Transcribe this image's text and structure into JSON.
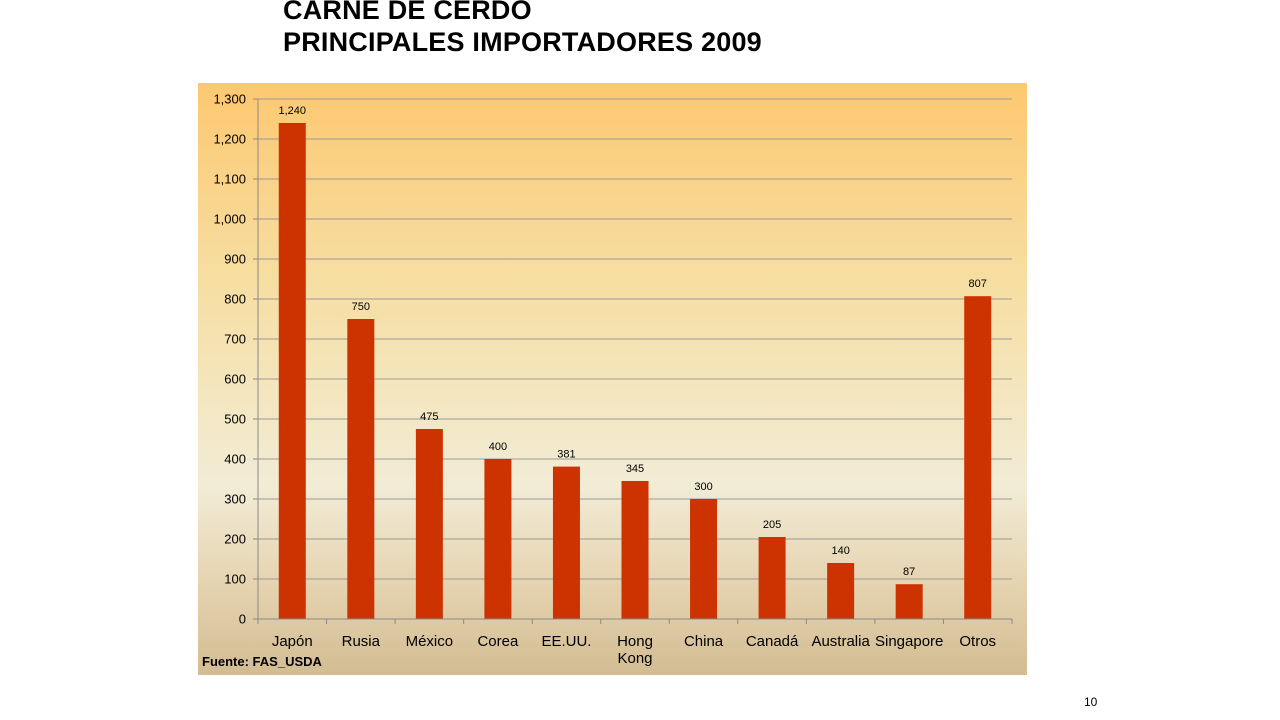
{
  "title": {
    "line1": "CARNE DE CERDO",
    "line2": "PRINCIPALES IMPORTADORES 2009"
  },
  "source": "Fuente: FAS_USDA",
  "page_number": "10",
  "colors": {
    "bar": "#cc3300",
    "grid": "#9a9a9a",
    "axis": "#8a8a8a",
    "text": "#000000"
  },
  "chart_data": {
    "type": "bar",
    "categories": [
      "Japón",
      "Rusia",
      "México",
      "Corea",
      "EE.UU.",
      "Hong Kong",
      "China",
      "Canadá",
      "Australia",
      "Singapore",
      "Otros"
    ],
    "category_lines": [
      [
        "Japón"
      ],
      [
        "Rusia"
      ],
      [
        "México"
      ],
      [
        "Corea"
      ],
      [
        "EE.UU."
      ],
      [
        "Hong",
        "Kong"
      ],
      [
        "China"
      ],
      [
        "Canadá"
      ],
      [
        "Australia"
      ],
      [
        "Singapore"
      ],
      [
        "Otros"
      ]
    ],
    "values": [
      1240,
      750,
      475,
      400,
      381,
      345,
      300,
      205,
      140,
      87,
      807
    ],
    "value_labels": [
      "1,240",
      "750",
      "475",
      "400",
      "381",
      "345",
      "300",
      "205",
      "140",
      "87",
      "807"
    ],
    "ylim": [
      0,
      1300
    ],
    "ytick_values": [
      0,
      100,
      200,
      300,
      400,
      500,
      600,
      700,
      800,
      900,
      1000,
      1100,
      1200,
      1300
    ],
    "ytick_labels": [
      "0",
      "100",
      "200",
      "300",
      "400",
      "500",
      "600",
      "700",
      "800",
      "900",
      "1,000",
      "1,100",
      "1,200",
      "1,300"
    ],
    "grid": true,
    "legend": "none"
  }
}
